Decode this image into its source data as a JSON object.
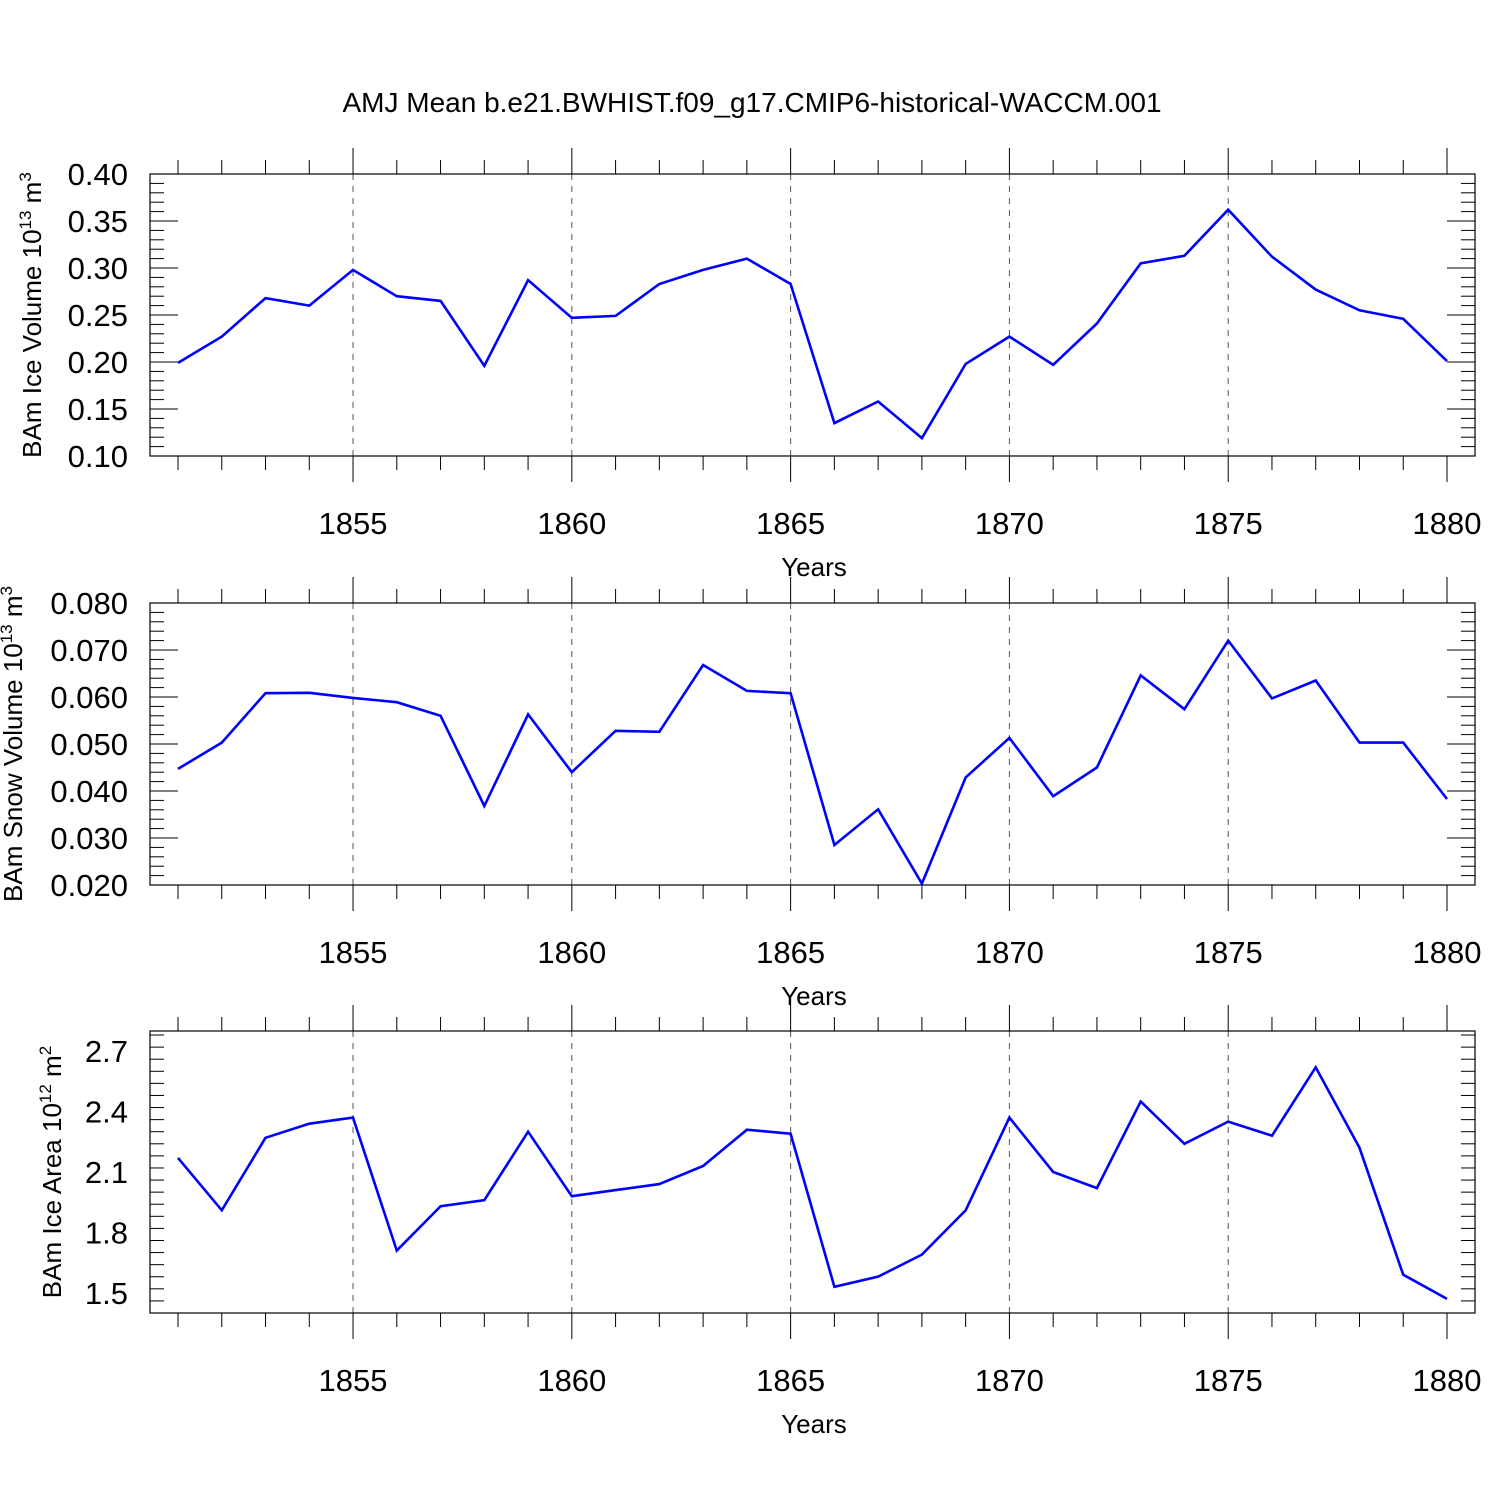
{
  "title": "AMJ Mean b.e21.BWHIST.f09_g17.CMIP6-historical-WACCM.001",
  "colors": {
    "line": "#0000ff",
    "axis": "#000000",
    "grid": "#555555"
  },
  "chart_data": [
    {
      "type": "line",
      "ylabel": "BAm Ice Volume 10",
      "ylabel_exp": "13",
      "ylabel_unit": " m",
      "ylabel_unit_exp": "3",
      "xlabel": "Years",
      "xlim": [
        1851,
        1880
      ],
      "ylim": [
        0.1,
        0.4
      ],
      "xticks": [
        1855,
        1860,
        1865,
        1870,
        1875,
        1880
      ],
      "xtick_labels": [
        "1855",
        "1860",
        "1865",
        "1870",
        "1875",
        "1880"
      ],
      "yticks": [
        0.1,
        0.15,
        0.2,
        0.25,
        0.3,
        0.35,
        0.4
      ],
      "ytick_labels": [
        "0.10",
        "0.15",
        "0.20",
        "0.25",
        "0.30",
        "0.35",
        "0.40"
      ],
      "grid": "vertical dashed at major x ticks",
      "x": [
        1851,
        1852,
        1853,
        1854,
        1855,
        1856,
        1857,
        1858,
        1859,
        1860,
        1861,
        1862,
        1863,
        1864,
        1865,
        1866,
        1867,
        1868,
        1869,
        1870,
        1871,
        1872,
        1873,
        1874,
        1875,
        1876,
        1877,
        1878,
        1879,
        1880
      ],
      "values": [
        0.199,
        0.227,
        0.268,
        0.26,
        0.298,
        0.27,
        0.265,
        0.196,
        0.287,
        0.247,
        0.249,
        0.283,
        0.298,
        0.31,
        0.283,
        0.135,
        0.158,
        0.119,
        0.198,
        0.227,
        0.197,
        0.241,
        0.305,
        0.313,
        0.362,
        0.312,
        0.277,
        0.255,
        0.246,
        0.201
      ]
    },
    {
      "type": "line",
      "ylabel": "BAm Snow Volume 10",
      "ylabel_exp": "13",
      "ylabel_unit": " m",
      "ylabel_unit_exp": "3",
      "xlabel": "Years",
      "xlim": [
        1851,
        1880
      ],
      "ylim": [
        0.02,
        0.08
      ],
      "xticks": [
        1855,
        1860,
        1865,
        1870,
        1875,
        1880
      ],
      "xtick_labels": [
        "1855",
        "1860",
        "1865",
        "1870",
        "1875",
        "1880"
      ],
      "yticks": [
        0.02,
        0.03,
        0.04,
        0.05,
        0.06,
        0.07,
        0.08
      ],
      "ytick_labels": [
        "0.020",
        "0.030",
        "0.040",
        "0.050",
        "0.060",
        "0.070",
        "0.080"
      ],
      "grid": "vertical dashed at major x ticks",
      "x": [
        1851,
        1852,
        1853,
        1854,
        1855,
        1856,
        1857,
        1858,
        1859,
        1860,
        1861,
        1862,
        1863,
        1864,
        1865,
        1866,
        1867,
        1868,
        1869,
        1870,
        1871,
        1872,
        1873,
        1874,
        1875,
        1876,
        1877,
        1878,
        1879,
        1880
      ],
      "values": [
        0.0447,
        0.0503,
        0.0608,
        0.0609,
        0.0598,
        0.0589,
        0.056,
        0.0368,
        0.0563,
        0.044,
        0.0528,
        0.0526,
        0.0668,
        0.0613,
        0.0608,
        0.0285,
        0.0361,
        0.0203,
        0.0429,
        0.0513,
        0.0389,
        0.045,
        0.0646,
        0.0574,
        0.072,
        0.0597,
        0.0635,
        0.0503,
        0.0503,
        0.0383
      ]
    },
    {
      "type": "line",
      "ylabel": "BAm Ice Area 10",
      "ylabel_exp": "12",
      "ylabel_unit": " m",
      "ylabel_unit_exp": "2",
      "xlabel": "Years",
      "xlim": [
        1851,
        1880
      ],
      "ylim": [
        1.4,
        2.8
      ],
      "xticks": [
        1855,
        1860,
        1865,
        1870,
        1875,
        1880
      ],
      "xtick_labels": [
        "1855",
        "1860",
        "1865",
        "1870",
        "1875",
        "1880"
      ],
      "yticks": [
        1.5,
        1.8,
        2.1,
        2.4,
        2.7
      ],
      "ytick_labels": [
        "1.5",
        "1.8",
        "2.1",
        "2.4",
        "2.7"
      ],
      "grid": "vertical dashed at major x ticks",
      "x": [
        1851,
        1852,
        1853,
        1854,
        1855,
        1856,
        1857,
        1858,
        1859,
        1860,
        1861,
        1862,
        1863,
        1864,
        1865,
        1866,
        1867,
        1868,
        1869,
        1870,
        1871,
        1872,
        1873,
        1874,
        1875,
        1876,
        1877,
        1878,
        1879,
        1880
      ],
      "values": [
        2.17,
        1.91,
        2.27,
        2.34,
        2.37,
        1.71,
        1.93,
        1.96,
        2.3,
        1.98,
        2.01,
        2.04,
        2.13,
        2.31,
        2.29,
        1.53,
        1.58,
        1.69,
        1.91,
        2.37,
        2.1,
        2.02,
        2.45,
        2.24,
        2.35,
        2.28,
        2.62,
        2.22,
        1.59,
        1.47
      ]
    }
  ]
}
